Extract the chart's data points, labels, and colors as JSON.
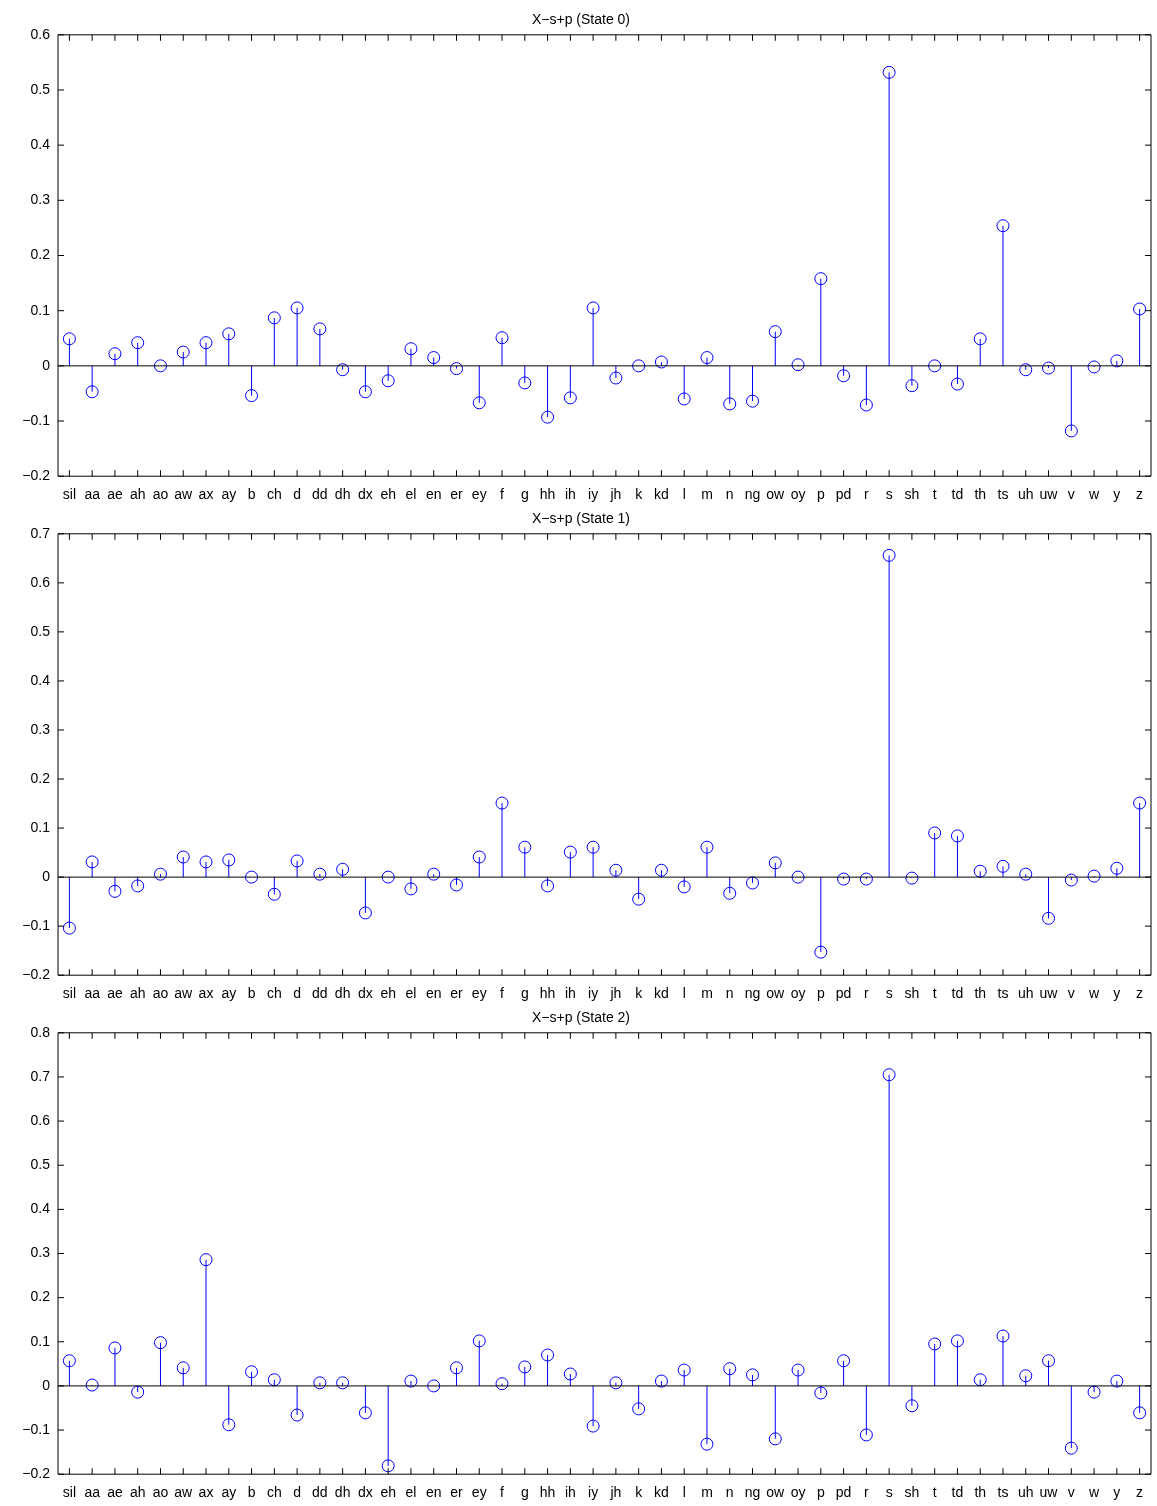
{
  "chart_data": [
    {
      "type": "lollipop",
      "title": "X−s+p (State 0)",
      "categories": [
        "sil",
        "aa",
        "ae",
        "ah",
        "ao",
        "aw",
        "ax",
        "ay",
        "b",
        "ch",
        "d",
        "dd",
        "dh",
        "dx",
        "eh",
        "el",
        "en",
        "er",
        "ey",
        "f",
        "g",
        "hh",
        "ih",
        "iy",
        "jh",
        "k",
        "kd",
        "l",
        "m",
        "n",
        "ng",
        "ow",
        "oy",
        "p",
        "pd",
        "r",
        "s",
        "sh",
        "t",
        "td",
        "th",
        "ts",
        "uh",
        "uw",
        "v",
        "w",
        "y",
        "z"
      ],
      "series": [
        {
          "color": "#0000ff",
          "values": [
            0.049,
            -0.047,
            0.022,
            0.042,
            0,
            0.025,
            0.042,
            0.058,
            -0.054,
            0.087,
            0.105,
            0.067,
            -0.007,
            -0.047,
            -0.027,
            0.031,
            0.015,
            -0.005,
            -0.067,
            0.051,
            -0.031,
            -0.093,
            -0.058,
            0.105,
            -0.022,
            0,
            0.007,
            -0.06,
            0.015,
            -0.069,
            -0.064,
            0.062,
            0.002,
            0.158,
            -0.018,
            -0.071,
            0.532,
            -0.036,
            0,
            -0.033,
            0.049,
            0.254,
            -0.007,
            -0.004,
            -0.118,
            -0.002,
            0.009,
            0.103
          ]
        }
      ],
      "ylim": [
        -0.2,
        0.6
      ],
      "yticks": [
        -0.2,
        -0.1,
        0,
        0.1,
        0.2,
        0.3,
        0.4,
        0.5,
        0.6
      ],
      "marker": "circle",
      "ref_lines": [
        {
          "axis": "y",
          "value": 0,
          "color": "#000000"
        }
      ]
    },
    {
      "type": "lollipop",
      "title": "X−s+p (State 1)",
      "categories": [
        "sil",
        "aa",
        "ae",
        "ah",
        "ao",
        "aw",
        "ax",
        "ay",
        "b",
        "ch",
        "d",
        "dd",
        "dh",
        "dx",
        "eh",
        "el",
        "en",
        "er",
        "ey",
        "f",
        "g",
        "hh",
        "ih",
        "iy",
        "jh",
        "k",
        "kd",
        "l",
        "m",
        "n",
        "ng",
        "ow",
        "oy",
        "p",
        "pd",
        "r",
        "s",
        "sh",
        "t",
        "td",
        "th",
        "ts",
        "uh",
        "uw",
        "v",
        "w",
        "y",
        "z"
      ],
      "series": [
        {
          "color": "#0000ff",
          "values": [
            -0.104,
            0.031,
            -0.029,
            -0.018,
            0.006,
            0.041,
            0.031,
            0.035,
            0,
            -0.035,
            0.033,
            0.006,
            0.016,
            -0.073,
            0,
            -0.024,
            0.006,
            -0.016,
            0.041,
            0.151,
            0.061,
            -0.018,
            0.051,
            0.061,
            0.014,
            -0.045,
            0.014,
            -0.02,
            0.061,
            -0.033,
            -0.012,
            0.029,
            0,
            -0.153,
            -0.004,
            -0.004,
            0.656,
            -0.002,
            0.09,
            0.084,
            0.012,
            0.022,
            0.006,
            -0.084,
            -0.006,
            0.002,
            0.018,
            0.151
          ]
        }
      ],
      "ylim": [
        -0.2,
        0.7
      ],
      "yticks": [
        -0.2,
        -0.1,
        0,
        0.1,
        0.2,
        0.3,
        0.4,
        0.5,
        0.6,
        0.7
      ],
      "marker": "circle",
      "ref_lines": [
        {
          "axis": "y",
          "value": 0,
          "color": "#000000"
        }
      ]
    },
    {
      "type": "lollipop",
      "title": "X−s+p (State 2)",
      "categories": [
        "sil",
        "aa",
        "ae",
        "ah",
        "ao",
        "aw",
        "ax",
        "ay",
        "b",
        "ch",
        "d",
        "dd",
        "dh",
        "dx",
        "eh",
        "el",
        "en",
        "er",
        "ey",
        "f",
        "g",
        "hh",
        "ih",
        "iy",
        "jh",
        "k",
        "kd",
        "l",
        "m",
        "n",
        "ng",
        "ow",
        "oy",
        "p",
        "pd",
        "r",
        "s",
        "sh",
        "t",
        "td",
        "th",
        "ts",
        "uh",
        "uw",
        "v",
        "w",
        "y",
        "z"
      ],
      "series": [
        {
          "color": "#0000ff",
          "values": [
            0.057,
            0.002,
            0.086,
            -0.014,
            0.098,
            0.041,
            0.286,
            -0.088,
            0.032,
            0.014,
            -0.066,
            0.007,
            0.007,
            -0.061,
            -0.181,
            0.011,
            0,
            0.041,
            0.102,
            0.005,
            0.043,
            0.07,
            0.027,
            -0.091,
            0.007,
            -0.052,
            0.011,
            0.036,
            -0.132,
            0.039,
            0.025,
            -0.12,
            0.036,
            -0.016,
            0.057,
            -0.111,
            0.705,
            -0.045,
            0.095,
            0.102,
            0.014,
            0.113,
            0.023,
            0.057,
            -0.141,
            -0.014,
            0.011,
            -0.061
          ]
        }
      ],
      "ylim": [
        -0.2,
        0.8
      ],
      "yticks": [
        -0.2,
        -0.1,
        0,
        0.1,
        0.2,
        0.3,
        0.4,
        0.5,
        0.6,
        0.7,
        0.8
      ],
      "marker": "circle",
      "ref_lines": [
        {
          "axis": "y",
          "value": 0,
          "color": "#000000"
        }
      ]
    }
  ]
}
